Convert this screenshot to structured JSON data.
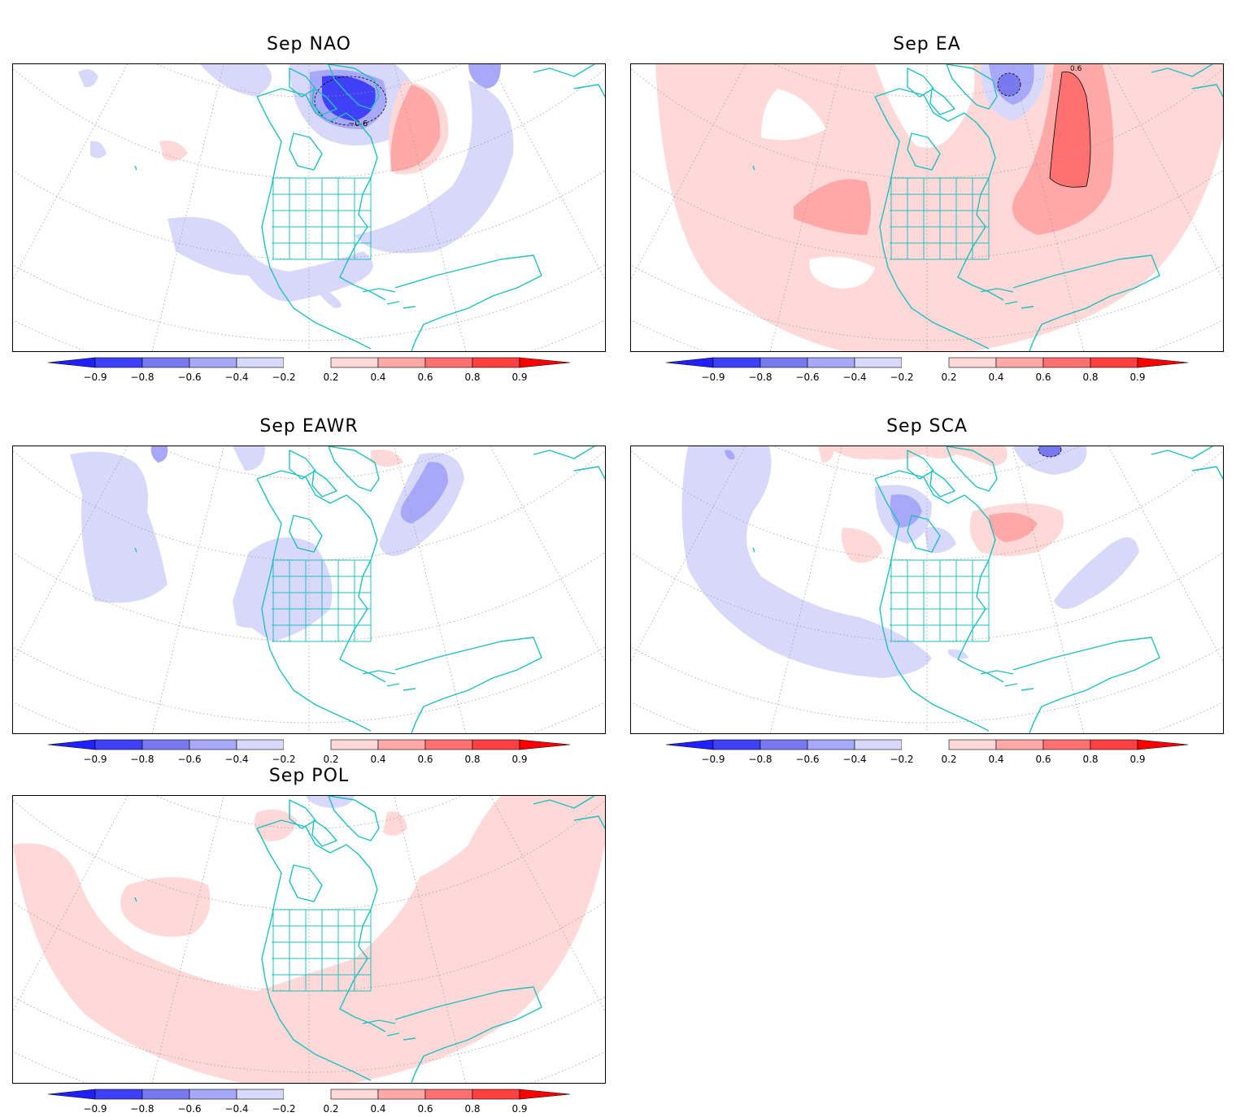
{
  "colors": {
    "coast": "#20c0c0",
    "grid": "#a0a0a0",
    "neg_levels": [
      "#2020ff",
      "#4040f8",
      "#7878f0",
      "#a8a8f8",
      "#d8d8fa"
    ],
    "pos_levels": [
      "#ffd8d8",
      "#ffa8a8",
      "#ff7070",
      "#ff4040",
      "#ff0000"
    ]
  },
  "colorbar": {
    "labels": [
      "−0.9",
      "−0.8",
      "−0.6",
      "−0.4",
      "−0.2",
      "0.2",
      "0.4",
      "0.6",
      "0.8",
      "0.9"
    ]
  },
  "panels": [
    {
      "id": "nao",
      "title": "Sep  NAO",
      "contour_label": "−0.6"
    },
    {
      "id": "ea",
      "title": "Sep  EA",
      "contour_label": "0.6"
    },
    {
      "id": "eawr",
      "title": "Sep  EAWR",
      "contour_label": ""
    },
    {
      "id": "sca",
      "title": "Sep  SCA",
      "contour_label": ""
    },
    {
      "id": "pol",
      "title": "Sep  POL",
      "contour_label": ""
    }
  ]
}
